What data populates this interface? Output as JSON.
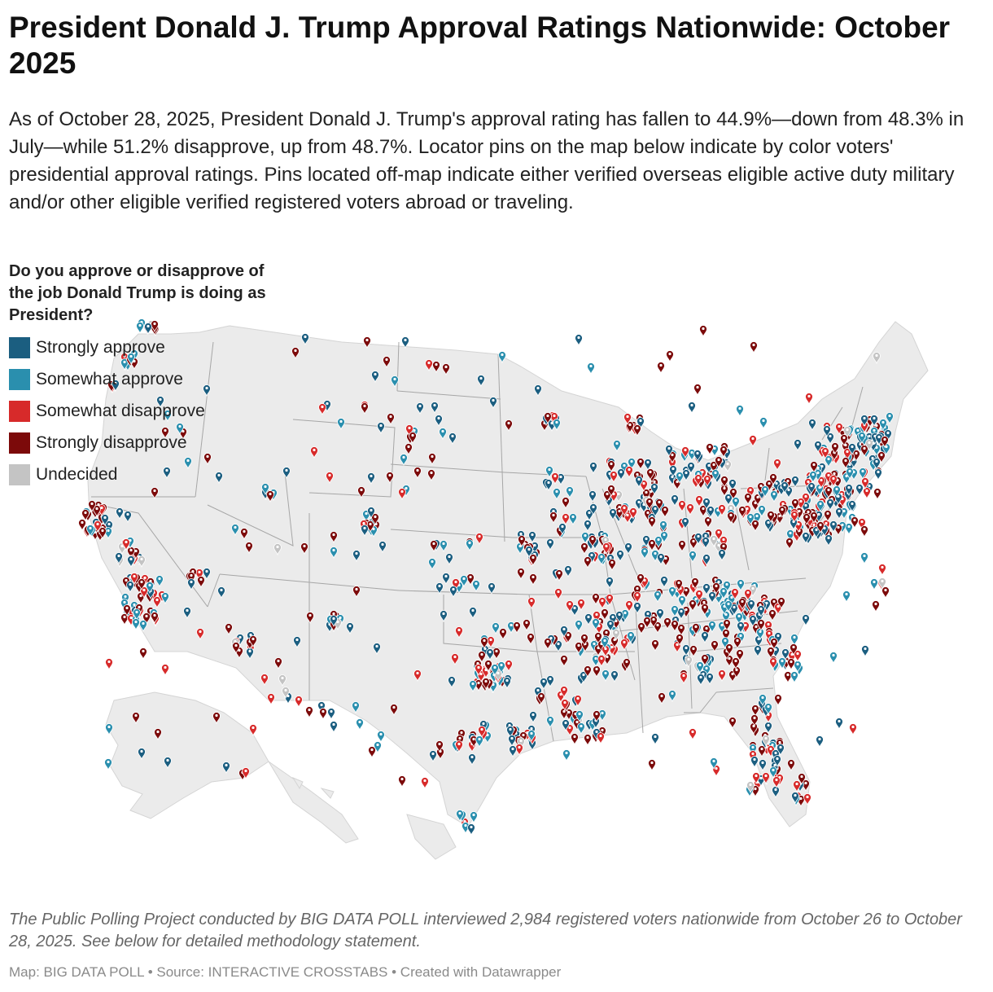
{
  "title": "President Donald J. Trump Approval Ratings Nationwide: October 2025",
  "subtitle": "As of October 28, 2025, President Donald J. Trump's approval rating has fallen to 44.9%—down from 48.3% in July—while 51.2% disapprove, up from 48.7%. Locator pins on the map below indicate by color voters' presidential approval ratings. Pins located off-map indicate either verified overseas eligible active duty military and/or other eligible verified registered voters abroad or traveling.",
  "legend": {
    "title": "Do you approve or disapprove of the job Donald Trump is doing as President?",
    "items": [
      {
        "label": "Strongly approve",
        "color": "#1b5e80"
      },
      {
        "label": "Somewhat approve",
        "color": "#2a8fae"
      },
      {
        "label": "Somewhat disapprove",
        "color": "#d72a2a"
      },
      {
        "label": "Strongly disapprove",
        "color": "#7c0a0a"
      },
      {
        "label": "Undecided",
        "color": "#c4c4c4"
      }
    ]
  },
  "notes": "The Public Polling Project conducted by BIG DATA POLL interviewed 2,984 registered voters nationwide from October 26 to October 28, 2025. See below for detailed methodology statement.",
  "footer": "Map: BIG DATA POLL • Source: INTERACTIVE CROSSTABS • Created with Datawrapper",
  "map": {
    "land_color": "#ebebeb",
    "border_color": "#a6a6a6",
    "pin_colors": {
      "strongly_approve": "#1b5e80",
      "somewhat_approve": "#2a8fae",
      "somewhat_disapprove": "#d72a2a",
      "strongly_disapprove": "#7c0a0a",
      "undecided": "#c4c4c4"
    }
  }
}
